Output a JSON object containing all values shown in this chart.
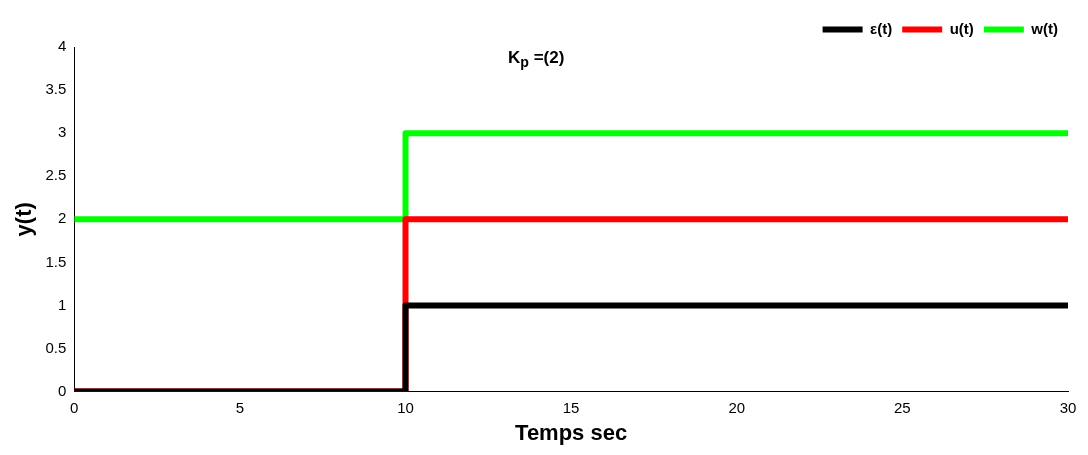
{
  "chart_data": {
    "type": "step",
    "xlabel": "Temps sec",
    "ylabel": "y(t)",
    "annotations": [
      "K$_{p}$ =(2)"
    ],
    "x": [
      0,
      10,
      30
    ],
    "series": [
      {
        "name": "ε(t)",
        "color": "#000000",
        "values": [
          0,
          1,
          1
        ]
      },
      {
        "name": "u(t)",
        "color": "#ff0000",
        "values": [
          0,
          2,
          2
        ]
      },
      {
        "name": "w(t)",
        "color": "#00ff00",
        "values": [
          2,
          3,
          3
        ]
      }
    ],
    "xlim": [
      0,
      30
    ],
    "xticks": [
      0,
      5,
      10,
      15,
      20,
      25,
      30
    ],
    "ylim": [
      0,
      4
    ],
    "yticks": [
      0,
      0.5,
      1,
      1.5,
      2,
      2.5,
      3,
      3.5,
      4
    ],
    "grid": false,
    "legend": "top right",
    "marker": "none",
    "line_style": "solid"
  }
}
